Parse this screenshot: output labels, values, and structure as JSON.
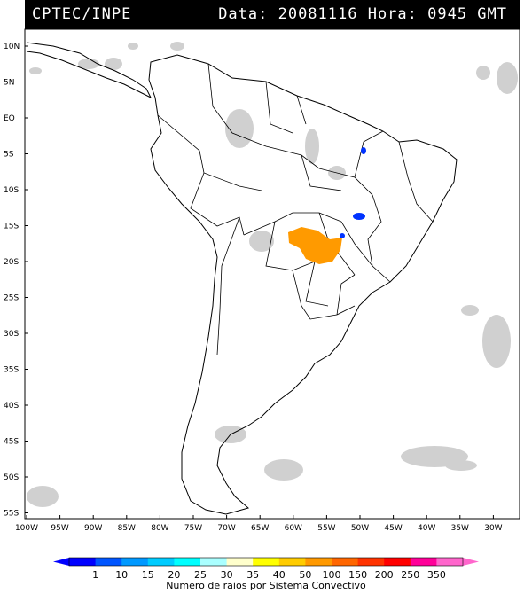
{
  "header": {
    "source": "CPTEC/INPE",
    "datetime": "Data: 20081116  Hora: 0945 GMT"
  },
  "map": {
    "lat_labels": [
      "10N",
      "5N",
      "EQ",
      "5S",
      "10S",
      "15S",
      "20S",
      "25S",
      "30S",
      "35S",
      "40S",
      "45S",
      "50S",
      "55S"
    ],
    "lon_labels": [
      "100W",
      "95W",
      "90W",
      "85W",
      "80W",
      "75W",
      "70W",
      "65W",
      "60W",
      "55W",
      "50W",
      "45W",
      "40W",
      "35W",
      "30W"
    ],
    "lat_range": [
      -56,
      12
    ],
    "lon_range": [
      -101,
      -28
    ],
    "colors": {
      "cloud": "#c8c8c8",
      "lightning_orange": "#ff9a00",
      "lightning_blue": "#0033ff",
      "coast": "#000000"
    }
  },
  "colorbar": {
    "ticks": [
      "1",
      "10",
      "15",
      "20",
      "25",
      "30",
      "35",
      "40",
      "50",
      "100",
      "150",
      "200",
      "250",
      "350"
    ],
    "colors": [
      "#0000ff",
      "#0055ff",
      "#0099ff",
      "#00ccff",
      "#00ffff",
      "#aaffff",
      "#ffffcc",
      "#ffff00",
      "#ffcc00",
      "#ff9900",
      "#ff6600",
      "#ff3300",
      "#ff0000",
      "#ff0099",
      "#ff66cc"
    ],
    "caption": "Numero de raios por Sistema Convectivo"
  }
}
